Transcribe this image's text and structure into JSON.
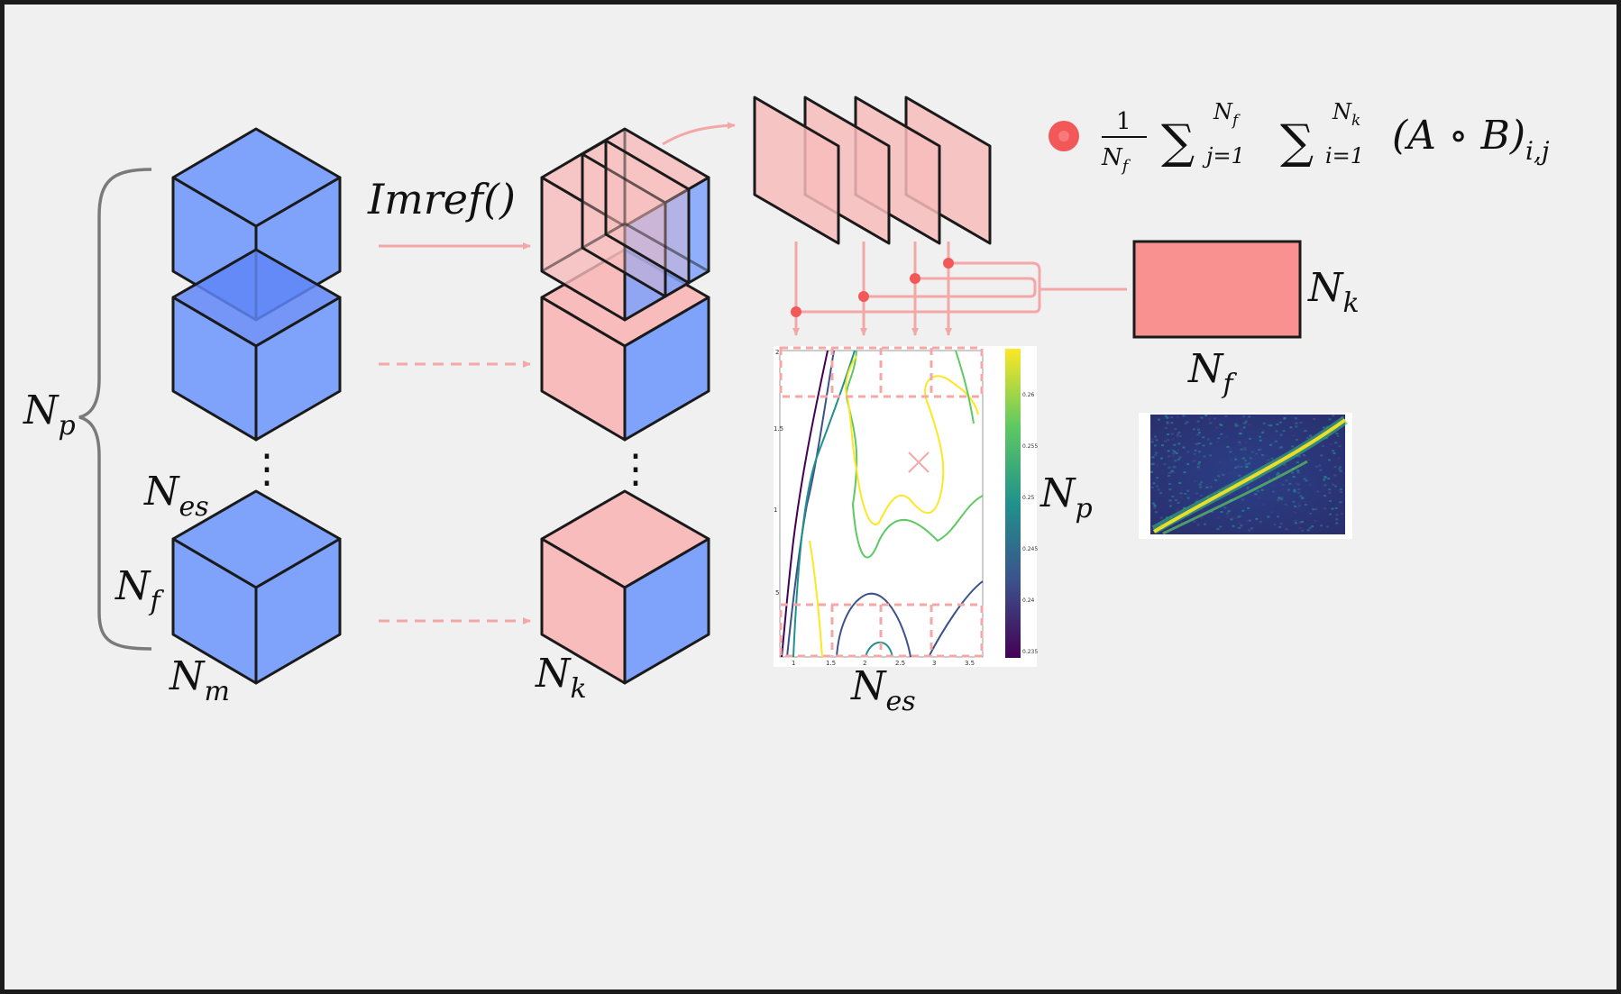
{
  "labels": {
    "np_brace": {
      "base": "N",
      "sub": "p"
    },
    "nes_left": {
      "base": "N",
      "sub": "es"
    },
    "nf_left": {
      "base": "N",
      "sub": "f"
    },
    "nm_left": {
      "base": "N",
      "sub": "m"
    },
    "nk_mid": {
      "base": "N",
      "sub": "k"
    },
    "imref": "Imref()",
    "nk_rect": {
      "base": "N",
      "sub": "k"
    },
    "nf_rect": {
      "base": "N",
      "sub": "f"
    },
    "np_plot": {
      "base": "N",
      "sub": "p"
    },
    "nes_plot": {
      "base": "N",
      "sub": "es"
    },
    "dots": "⋮"
  },
  "formula": {
    "frac_num": "1",
    "frac_den_base": "N",
    "frac_den_sub": "f",
    "sum1_upper_base": "N",
    "sum1_upper_sub": "f",
    "sum1_lower": "j=1",
    "sum2_upper_base": "N",
    "sum2_upper_sub": "k",
    "sum2_lower": "i=1",
    "body": "(A ∘ B)",
    "body_sub": "i,j"
  },
  "contour_plot": {
    "x_ticks": [
      "1",
      "1.5",
      "2",
      "2.5",
      "3",
      "3.5"
    ],
    "y_ticks": [
      "2",
      "1.5",
      "1",
      "5"
    ],
    "colorbar_ticks": [
      "0.26",
      "0.255",
      "0.25",
      "0.245",
      "0.24",
      "0.235"
    ]
  },
  "colors": {
    "blue_front": "#7fa2fb",
    "blue_top": "#6f93f8",
    "pink": "#f8bcbc",
    "pink_strong": "#f99191",
    "arrow": "#f4a7a7",
    "dot": "#f25858",
    "background": "#f0f0f0",
    "frame": "#1b1b1b"
  }
}
